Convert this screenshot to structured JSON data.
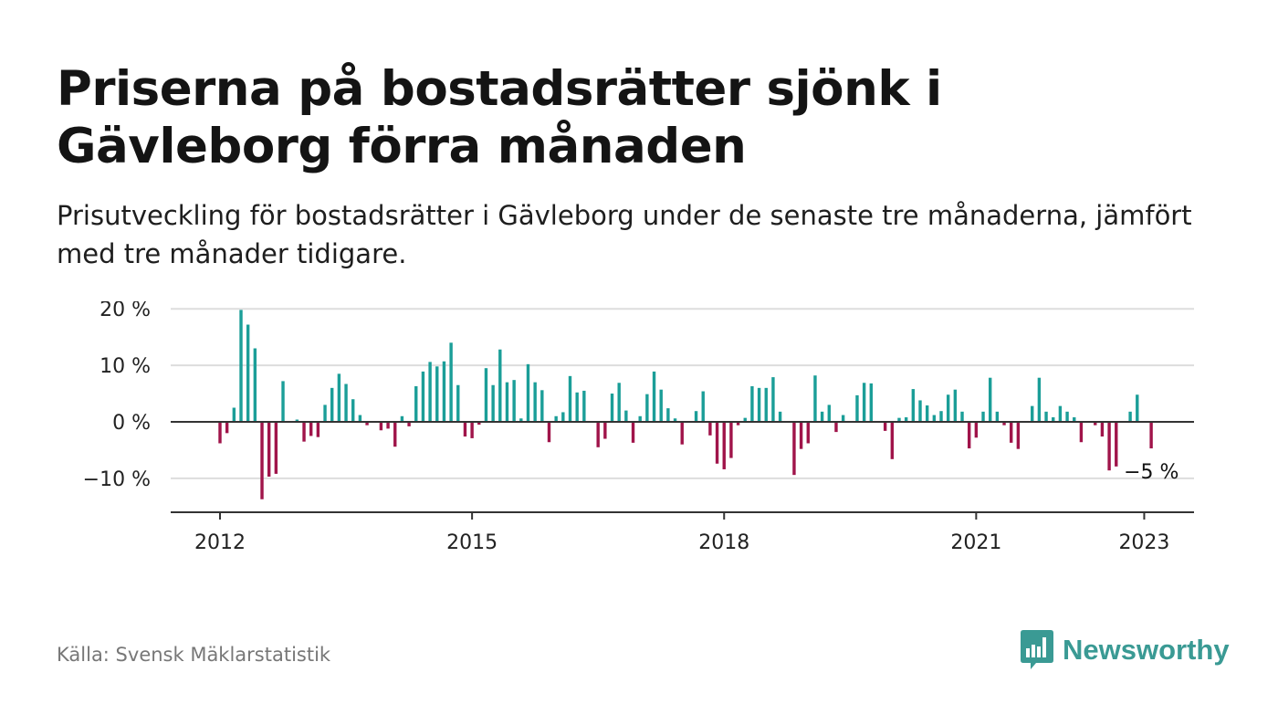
{
  "title": "Priserna på bostadsrätter sjönk i Gävleborg förra månaden",
  "subtitle": "Prisutveckling för bostadsrätter i Gävleborg under de senaste tre månaderna, jämfört med tre månader tidigare.",
  "source": "Källa: Svensk Mäklarstatistik",
  "brand": {
    "name": "Newsworthy",
    "icon": "newsworthy-logo-icon"
  },
  "colors": {
    "positive": "#1b9e98",
    "negative": "#a0144a",
    "grid": "#dddddd",
    "axis": "#333333",
    "brand": "#3a9a94"
  },
  "chart_data": {
    "type": "bar",
    "title": "",
    "xlabel": "",
    "ylabel": "",
    "ylim": [
      -16,
      21
    ],
    "yticks": [
      20,
      10,
      0,
      -10
    ],
    "ytick_labels": [
      "20 %",
      "10 %",
      "0 %",
      "−10 %"
    ],
    "grid": true,
    "xticks": [
      {
        "label": "2012",
        "month_index": 0
      },
      {
        "label": "2015",
        "month_index": 36
      },
      {
        "label": "2018",
        "month_index": 72
      },
      {
        "label": "2021",
        "month_index": 108
      },
      {
        "label": "2023",
        "month_index": 132
      }
    ],
    "annotation": {
      "text": "−5 %",
      "month_index": 133
    },
    "start": "2012-01",
    "end": "2023-02",
    "values": [
      -3.8,
      -2.0,
      2.5,
      19.8,
      17.2,
      13.0,
      -13.7,
      -9.7,
      -9.2,
      7.2,
      0,
      0.4,
      -3.5,
      -2.5,
      -2.7,
      3.0,
      6.0,
      8.5,
      6.7,
      4.0,
      1.2,
      -0.6,
      0,
      -1.5,
      -1.2,
      -4.4,
      1.0,
      -0.8,
      6.3,
      8.9,
      10.6,
      9.8,
      10.7,
      14.0,
      6.5,
      -2.6,
      -2.9,
      -0.5,
      9.5,
      6.5,
      12.8,
      7.0,
      7.4,
      0.6,
      10.2,
      7.0,
      5.6,
      -3.6,
      1.0,
      1.7,
      8.1,
      5.2,
      5.5,
      0,
      -4.5,
      -3.0,
      5.0,
      6.9,
      2.0,
      -3.7,
      1.0,
      4.9,
      8.9,
      5.7,
      2.4,
      0.6,
      -4.0,
      0,
      1.9,
      5.4,
      -2.4,
      -7.4,
      -8.4,
      -6.4,
      -0.6,
      0.7,
      6.3,
      6.0,
      6.0,
      7.9,
      1.8,
      0,
      -9.4,
      -4.8,
      -3.8,
      8.2,
      1.8,
      3.0,
      -1.8,
      1.2,
      0,
      4.7,
      6.9,
      6.8,
      0,
      -1.6,
      -6.6,
      0.7,
      0.8,
      5.8,
      3.8,
      2.9,
      1.2,
      1.9,
      4.8,
      5.7,
      1.8,
      -4.7,
      -2.8,
      1.8,
      7.8,
      1.8,
      -0.6,
      -3.7,
      -4.8,
      0,
      2.8,
      7.8,
      1.8,
      0.8,
      2.8,
      1.8,
      0.8,
      -3.6,
      0,
      -0.6,
      -2.6,
      -8.6,
      -7.9,
      0,
      1.8,
      4.8,
      0,
      -4.7
    ]
  }
}
